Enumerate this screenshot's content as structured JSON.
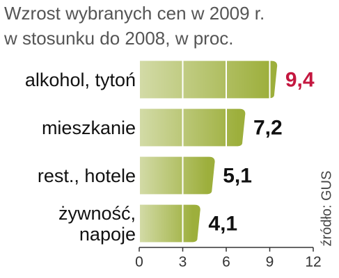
{
  "chart_data": {
    "type": "bar",
    "orientation": "horizontal",
    "title": "Wzrost wybranych cen w 2009 r.",
    "subtitle": "w stosunku do 2008, w proc.",
    "categories": [
      "alkohol, tytoń",
      "mieszkanie",
      "rest., hotele",
      "żywność,\nnapoje"
    ],
    "values": [
      9.4,
      7.2,
      5.1,
      4.1
    ],
    "value_labels": [
      "9,4",
      "7,2",
      "5,1",
      "4,1"
    ],
    "value_label_colors": [
      "#c4173f",
      "#111111",
      "#111111",
      "#111111"
    ],
    "color": "#9daf3c",
    "xlim": [
      0,
      12
    ],
    "xticks": [
      0,
      3,
      6,
      9,
      12
    ],
    "grid": true,
    "source": "źródło: GUS"
  }
}
